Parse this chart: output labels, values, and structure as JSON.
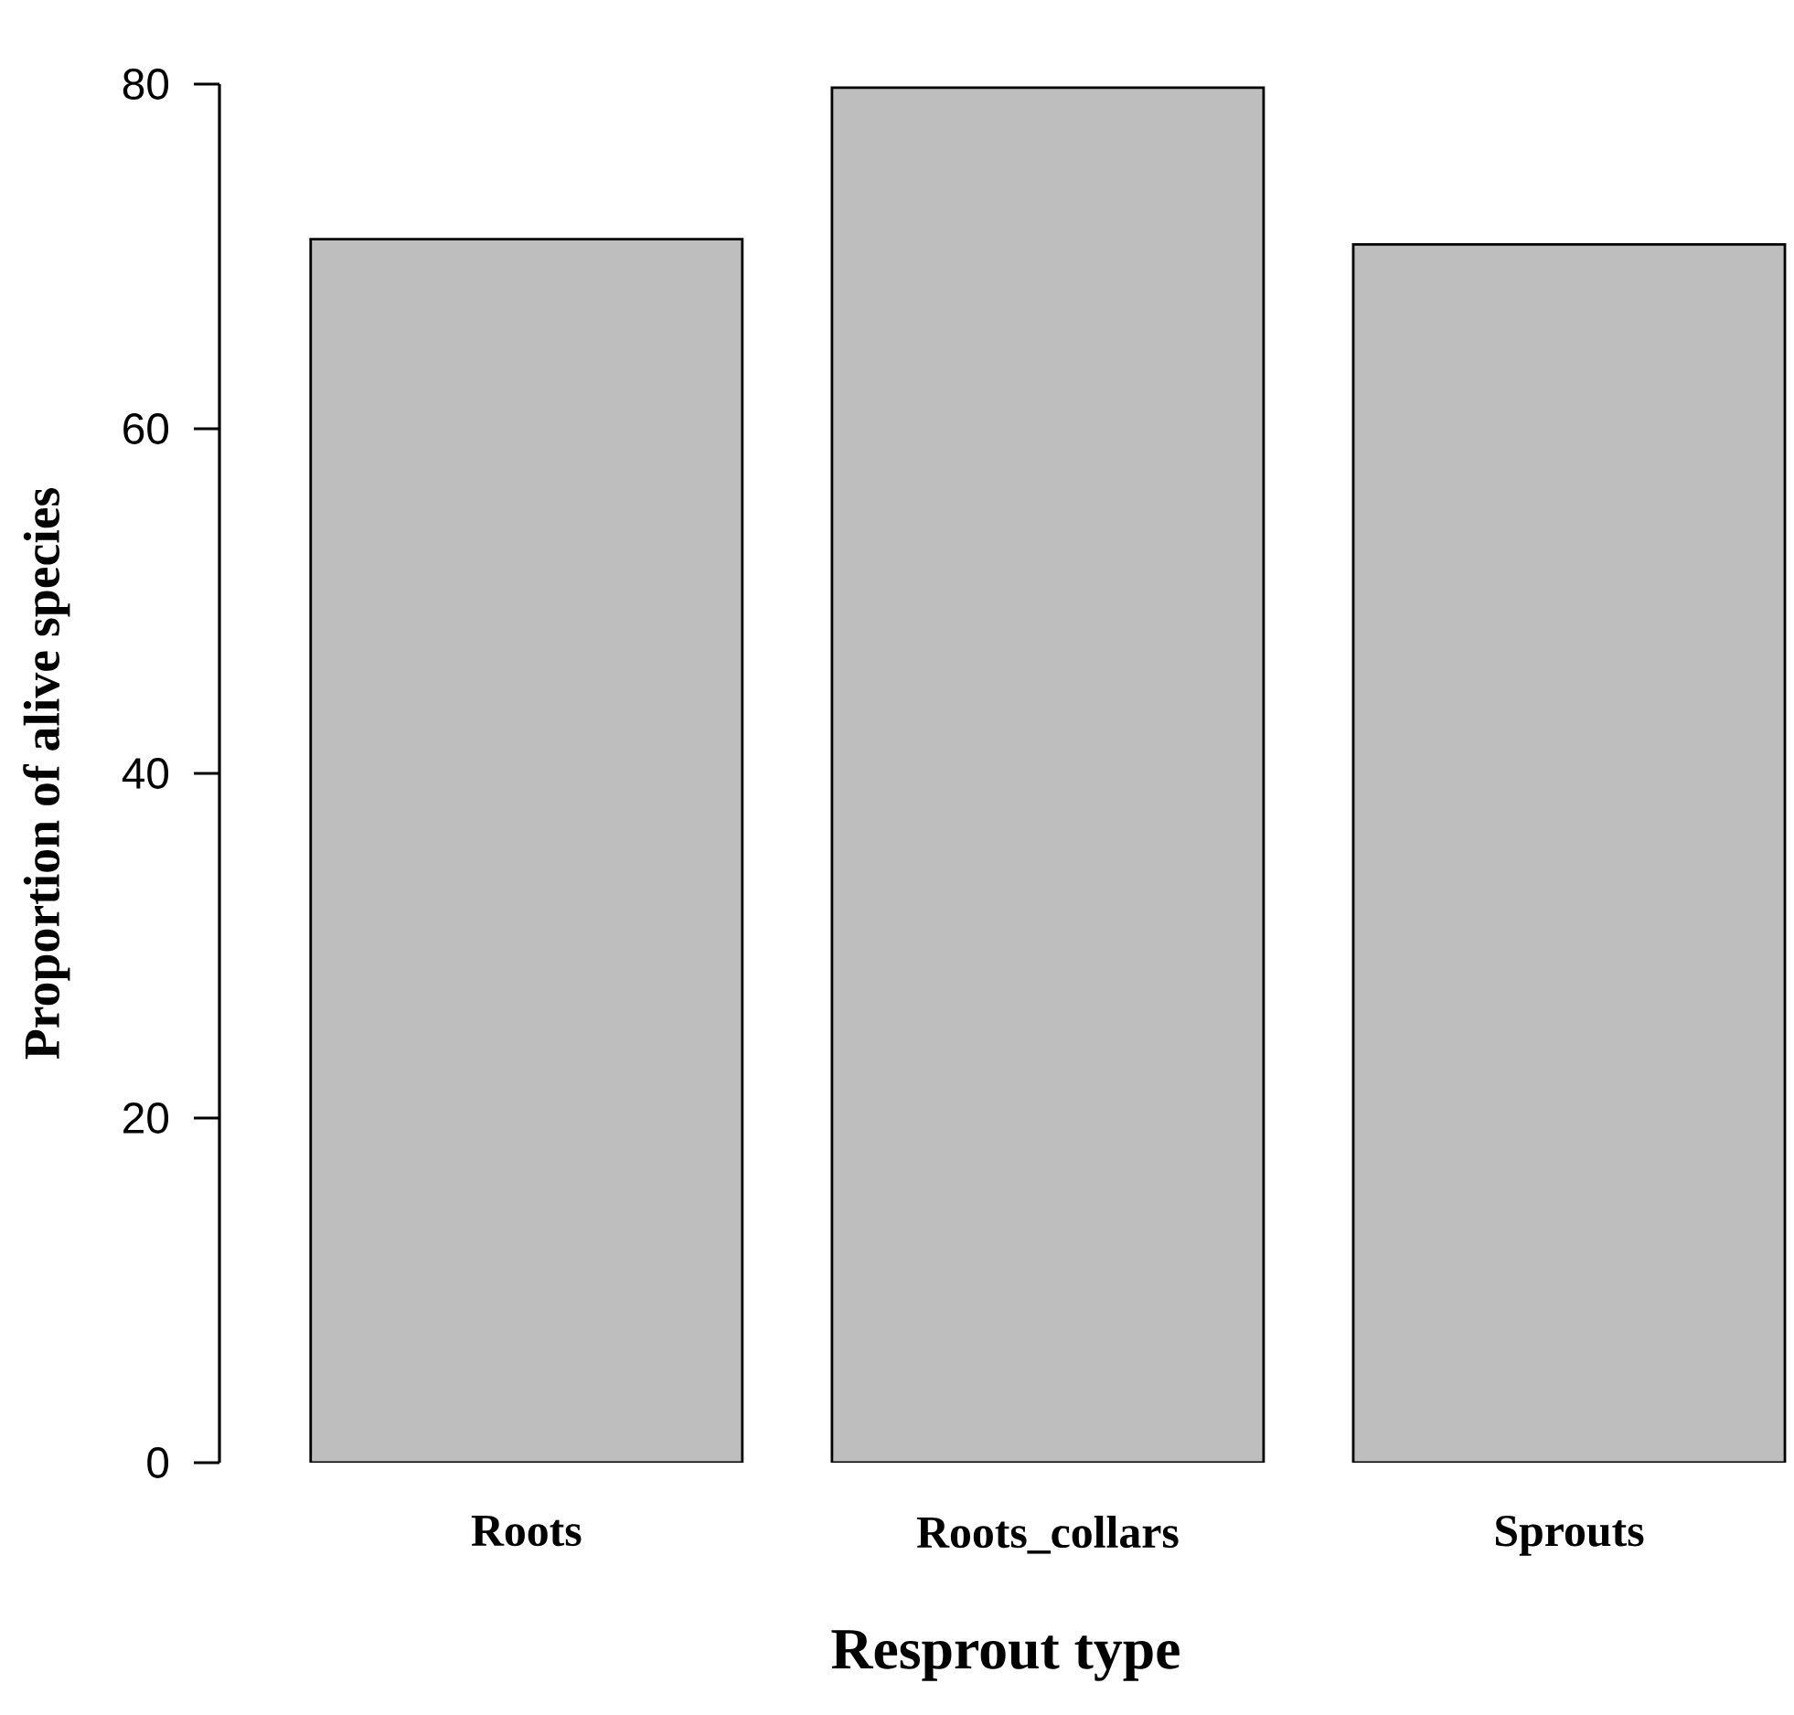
{
  "chart_data": {
    "type": "bar",
    "xlabel": "Resprout type",
    "ylabel": "Proportion of alive species",
    "categories": [
      "Roots",
      "Roots_collars",
      "Sprouts"
    ],
    "values": [
      71,
      79.8,
      70.7
    ],
    "color": "#bebebe",
    "ylim": [
      0,
      80
    ],
    "yticks": [
      0,
      20,
      40,
      60,
      80
    ]
  }
}
